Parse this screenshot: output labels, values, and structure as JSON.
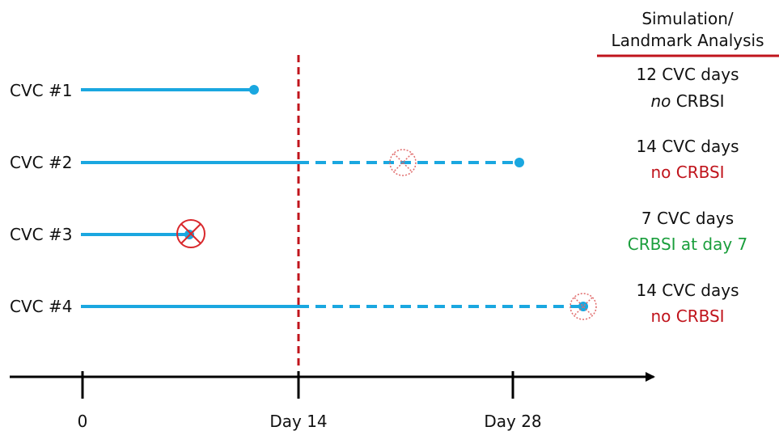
{
  "header": {
    "line1": "Simulation/",
    "line2": "Landmark Analysis"
  },
  "axis": {
    "tick_labels": [
      "0",
      "Day 14",
      "Day 28"
    ]
  },
  "catheters": [
    {
      "label": "CVC #1",
      "result": {
        "days": "12 CVC days",
        "pre": "no",
        "post": " CRBSI",
        "pre_italic": true,
        "line2_status": "normal"
      }
    },
    {
      "label": "CVC #2",
      "result": {
        "days": "14 CVC days",
        "text": "no CRBSI",
        "line2_status": "no-event-censored"
      }
    },
    {
      "label": "CVC #3",
      "result": {
        "days": "7 CVC days",
        "text": "CRBSI at day 7",
        "line2_status": "event"
      }
    },
    {
      "label": "CVC #4",
      "result": {
        "days": "14 CVC days",
        "text": "no CRBSI",
        "line2_status": "no-event-censored"
      }
    }
  ],
  "colors": {
    "line": "#1aa7e0",
    "landmark": "#c0141c",
    "header_rule": "#c0141c",
    "event_text": "#1a9e3c",
    "censored_text": "#c0141c",
    "axis": "#000000"
  }
}
